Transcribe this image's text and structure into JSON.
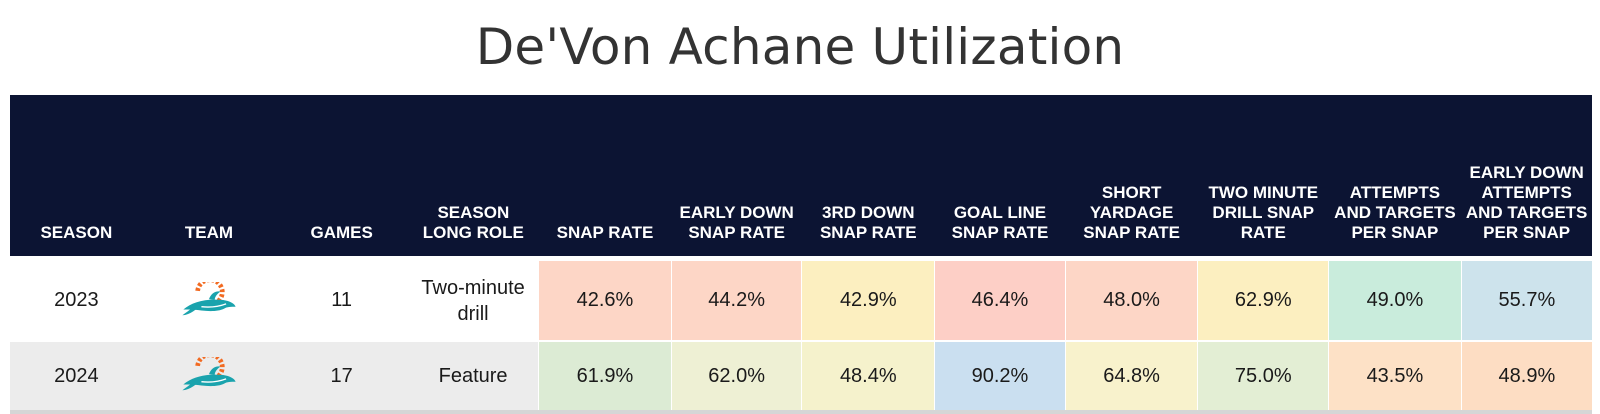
{
  "title": "De'Von Achane Utilization",
  "columns": [
    "SEASON",
    "TEAM",
    "GAMES",
    "SEASON LONG ROLE",
    "SNAP RATE",
    "EARLY DOWN SNAP RATE",
    "3RD DOWN SNAP RATE",
    "GOAL LINE SNAP RATE",
    "SHORT YARDAGE SNAP RATE",
    "TWO MINUTE DRILL SNAP RATE",
    "ATTEMPTS AND TARGETS PER SNAP",
    "EARLY DOWN ATTEMPTS AND TARGETS PER SNAP"
  ],
  "rows": [
    {
      "season": "2023",
      "team_icon": "dolphins-logo-icon",
      "games": "11",
      "role": "Two-minute drill",
      "metrics": [
        "42.6%",
        "44.2%",
        "42.9%",
        "46.4%",
        "48.0%",
        "62.9%",
        "49.0%",
        "55.7%"
      ],
      "colors": [
        "#fdd6c6",
        "#fdd6c6",
        "#fcefc0",
        "#fdcfc6",
        "#fdd6c6",
        "#fcefc0",
        "#c9ecdc",
        "#cde3ec"
      ]
    },
    {
      "season": "2024",
      "team_icon": "dolphins-logo-icon",
      "games": "17",
      "role": "Feature",
      "metrics": [
        "61.9%",
        "62.0%",
        "48.4%",
        "90.2%",
        "64.8%",
        "75.0%",
        "43.5%",
        "48.9%"
      ],
      "colors": [
        "#dcebd4",
        "#eef0d4",
        "#f5f2cc",
        "#cadff0",
        "#f8f2cc",
        "#e3eed4",
        "#fde1c6",
        "#fdddc3"
      ]
    }
  ],
  "theme": {
    "header_bg": "#0c1433",
    "team_teal": "#1aa3ad",
    "team_orange": "#f26a21"
  }
}
